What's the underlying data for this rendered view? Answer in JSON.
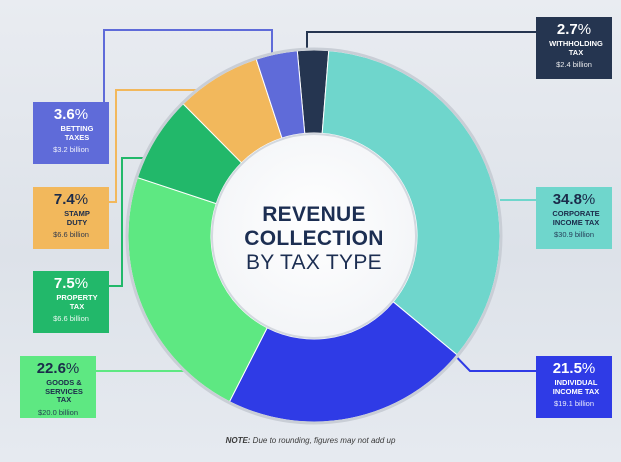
{
  "chart_data": {
    "type": "pie",
    "title_lines": [
      "REVENUE",
      "COLLECTION",
      "BY TAX TYPE"
    ],
    "note_label": "NOTE:",
    "note_text": " Due to rounding, figures may not add up",
    "slices": [
      {
        "pct": "2.7",
        "value": 2.7,
        "name_lines": [
          "WITHHOLDING",
          "TAX"
        ],
        "amount": "$2.4 billion",
        "color": "#253550",
        "text_color": "#ffffff"
      },
      {
        "pct": "34.8",
        "value": 34.8,
        "name_lines": [
          "CORPORATE",
          "INCOME TAX"
        ],
        "amount": "$30.9 billion",
        "color": "#6fd6cc",
        "text_color": "#1b2b4a"
      },
      {
        "pct": "21.5",
        "value": 21.5,
        "name_lines": [
          "INDIVIDUAL",
          "INCOME TAX"
        ],
        "amount": "$19.1 billion",
        "color": "#2f3be6",
        "text_color": "#ffffff"
      },
      {
        "pct": "22.6",
        "value": 22.6,
        "name_lines": [
          "GOODS &",
          "SERVICES TAX"
        ],
        "amount": "$20.0 billion",
        "color": "#5ee882",
        "text_color": "#1b2b4a"
      },
      {
        "pct": "7.5",
        "value": 7.5,
        "name_lines": [
          "PROPERTY",
          "TAX"
        ],
        "amount": "$6.6 billion",
        "color": "#22b86a",
        "text_color": "#ffffff"
      },
      {
        "pct": "7.4",
        "value": 7.4,
        "name_lines": [
          "STAMP",
          "DUTY"
        ],
        "amount": "$6.6 billion",
        "color": "#f2b85c",
        "text_color": "#1b2b4a"
      },
      {
        "pct": "3.6",
        "value": 3.6,
        "name_lines": [
          "BETTING",
          "TAXES"
        ],
        "amount": "$3.2 billion",
        "color": "#5f6bd9",
        "text_color": "#ffffff"
      }
    ],
    "percent_sign": "%"
  }
}
